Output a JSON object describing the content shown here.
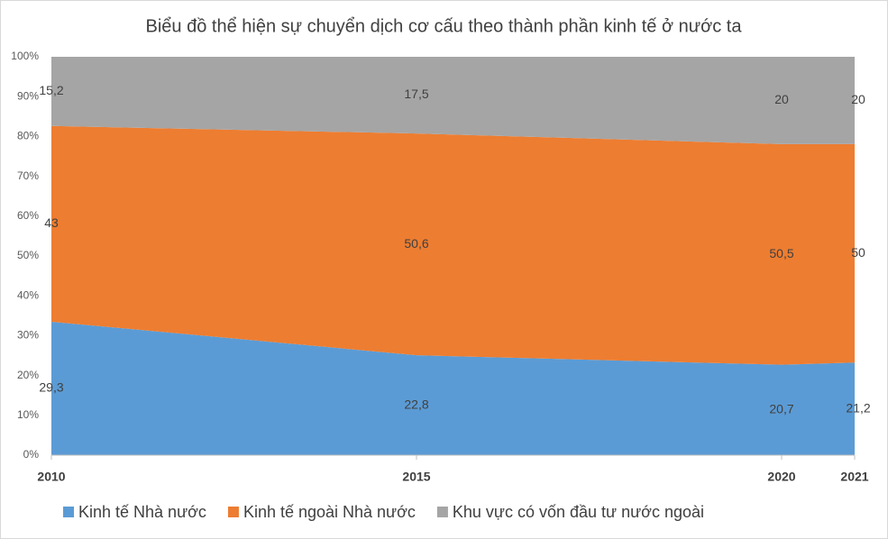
{
  "chart_data": {
    "type": "area",
    "stacking": "percent",
    "title": "Biểu đồ thể hiện sự chuyển dịch cơ cấu theo thành phần kinh tế ở nước ta",
    "x": [
      2010,
      2015,
      2020,
      2021
    ],
    "xlim": [
      2010,
      2021
    ],
    "xticks": [
      2010,
      2015,
      2020,
      2021
    ],
    "ylim": [
      0,
      100
    ],
    "yticks": [
      {
        "value": 0,
        "label": "0%"
      },
      {
        "value": 10,
        "label": "10%"
      },
      {
        "value": 20,
        "label": "20%"
      },
      {
        "value": 30,
        "label": "30%"
      },
      {
        "value": 40,
        "label": "40%"
      },
      {
        "value": 50,
        "label": "50%"
      },
      {
        "value": 60,
        "label": "60%"
      },
      {
        "value": 70,
        "label": "70%"
      },
      {
        "value": 80,
        "label": "80%"
      },
      {
        "value": 90,
        "label": "90%"
      },
      {
        "value": 100,
        "label": "100%"
      }
    ],
    "grid": false,
    "legend": "bottom",
    "series": [
      {
        "name": "Kinh tế Nhà nước",
        "color": "#5b9bd5",
        "values": [
          29.3,
          22.8,
          20.7,
          21.2
        ],
        "value_labels": [
          "29,3",
          "22,8",
          "20,7",
          "21,2"
        ]
      },
      {
        "name": "Kinh tế ngoài Nhà nước",
        "color": "#ed7d31",
        "values": [
          43,
          50.6,
          50.5,
          50
        ],
        "value_labels": [
          "43",
          "50,6",
          "50,5",
          "50"
        ]
      },
      {
        "name": "Khu vực có vốn đầu tư nước ngoài",
        "color": "#a5a5a5",
        "values": [
          15.2,
          17.5,
          20,
          20
        ],
        "value_labels": [
          "15,2",
          "17,5",
          "20",
          "20"
        ]
      }
    ]
  }
}
